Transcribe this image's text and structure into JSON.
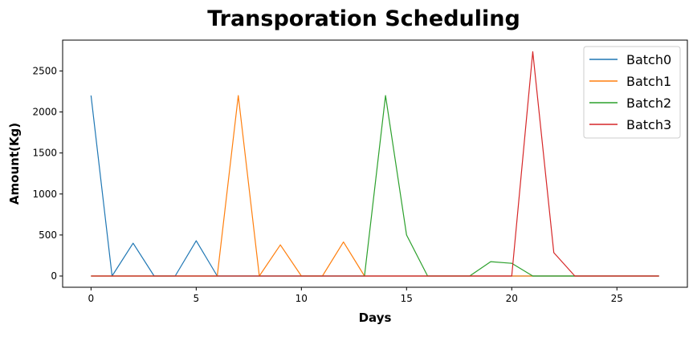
{
  "chart_data": {
    "type": "line",
    "title": "Transporation Scheduling",
    "xlabel": "Days",
    "ylabel": "Amount(Kg)",
    "xlim": [
      -1.35,
      28.35
    ],
    "ylim": [
      -137,
      2876
    ],
    "xticks": [
      0,
      5,
      10,
      15,
      20,
      25
    ],
    "yticks": [
      0,
      500,
      1000,
      1500,
      2000,
      2500
    ],
    "grid": false,
    "legend_position": "top-right",
    "x": [
      0,
      1,
      2,
      3,
      4,
      5,
      6,
      7,
      8,
      9,
      10,
      11,
      12,
      13,
      14,
      15,
      16,
      17,
      18,
      19,
      20,
      21,
      22,
      23,
      24,
      25,
      26,
      27
    ],
    "series": [
      {
        "name": "Batch0",
        "color": "#1f77b4",
        "values": [
          2200,
          0,
          400,
          0,
          0,
          430,
          0,
          0,
          0,
          0,
          0,
          0,
          0,
          0,
          0,
          0,
          0,
          0,
          0,
          0,
          0,
          0,
          0,
          0,
          0,
          0,
          0,
          0
        ]
      },
      {
        "name": "Batch1",
        "color": "#ff7f0e",
        "values": [
          0,
          0,
          0,
          0,
          0,
          0,
          0,
          2200,
          0,
          380,
          0,
          0,
          415,
          0,
          0,
          0,
          0,
          0,
          0,
          0,
          0,
          0,
          0,
          0,
          0,
          0,
          0,
          0
        ]
      },
      {
        "name": "Batch2",
        "color": "#2ca02c",
        "values": [
          0,
          0,
          0,
          0,
          0,
          0,
          0,
          0,
          0,
          0,
          0,
          0,
          0,
          0,
          2200,
          500,
          0,
          0,
          0,
          175,
          155,
          0,
          0,
          0,
          0,
          0,
          0,
          0
        ]
      },
      {
        "name": "Batch3",
        "color": "#d62728",
        "values": [
          0,
          0,
          0,
          0,
          0,
          0,
          0,
          0,
          0,
          0,
          0,
          0,
          0,
          0,
          0,
          0,
          0,
          0,
          0,
          0,
          0,
          2735,
          285,
          0,
          0,
          0,
          0,
          0
        ]
      }
    ]
  }
}
